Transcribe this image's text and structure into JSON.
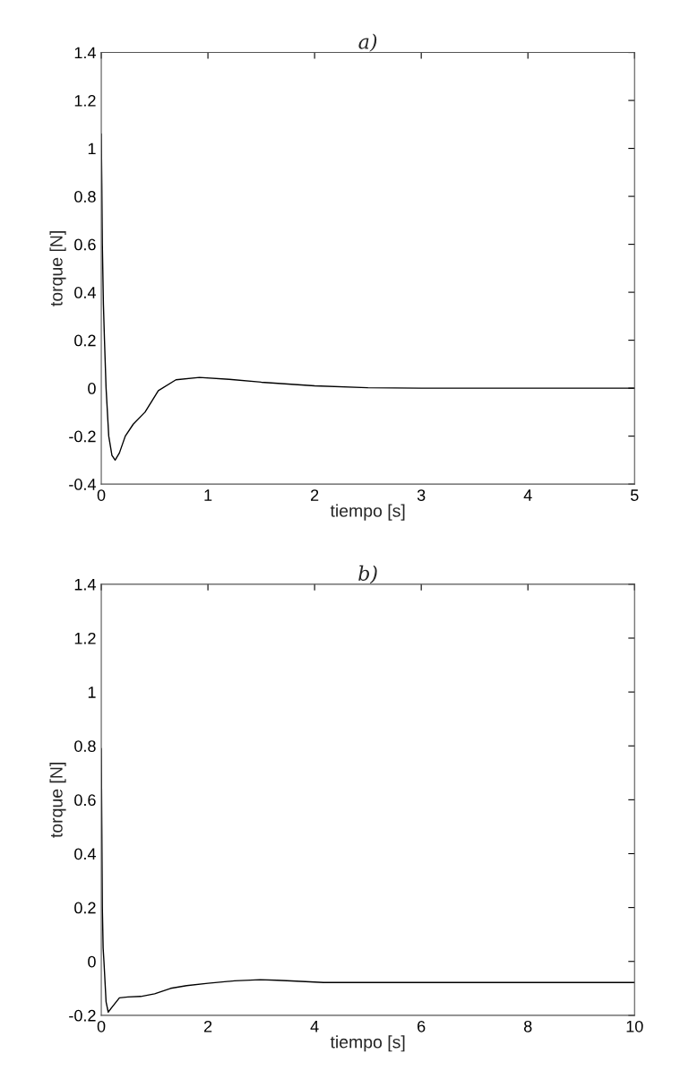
{
  "chart_data": [
    {
      "type": "line",
      "title": "a)",
      "xlabel": "tiempo [s]",
      "ylabel": "torque [N]",
      "xlim": [
        0,
        5
      ],
      "ylim": [
        -0.4,
        1.4
      ],
      "xticks": [
        0,
        1,
        2,
        3,
        4,
        5
      ],
      "yticks": [
        -0.4,
        -0.2,
        0,
        0.2,
        0.4,
        0.6,
        0.8,
        1,
        1.2,
        1.4
      ],
      "grid": false,
      "legend": false,
      "series": [
        {
          "color": "#000000",
          "x": [
            0,
            0.005,
            0.01,
            0.02,
            0.03,
            0.045,
            0.07,
            0.1,
            0.13,
            0.17,
            0.225,
            0.3,
            0.41,
            0.535,
            0.7,
            0.92,
            1.2,
            1.5,
            2,
            2.5,
            3,
            4,
            5
          ],
          "values": [
            1.06,
            0.85,
            0.6,
            0.35,
            0.2,
            0,
            -0.2,
            -0.28,
            -0.3,
            -0.27,
            -0.2,
            -0.15,
            -0.1,
            -0.01,
            0.035,
            0.045,
            0.037,
            0.025,
            0.01,
            0.002,
            0,
            0,
            0
          ]
        }
      ]
    },
    {
      "type": "line",
      "title": "b)",
      "xlabel": "tiempo [s]",
      "ylabel": "torque [N]",
      "xlim": [
        0,
        10
      ],
      "ylim": [
        -0.2,
        1.4
      ],
      "xticks": [
        0,
        2,
        4,
        6,
        8,
        10
      ],
      "yticks": [
        -0.2,
        0,
        0.2,
        0.4,
        0.6,
        0.8,
        1,
        1.2,
        1.4
      ],
      "grid": false,
      "legend": false,
      "series": [
        {
          "color": "#000000",
          "x": [
            0,
            0.01,
            0.02,
            0.035,
            0.05,
            0.09,
            0.13,
            0.2,
            0.34,
            0.5,
            0.74,
            1,
            1.3,
            1.6,
            2,
            2.5,
            2.98,
            3.3,
            3.66,
            4.17,
            5,
            7,
            10
          ],
          "values": [
            0.79,
            0.5,
            0.2,
            0.05,
            0,
            -0.15,
            -0.188,
            -0.17,
            -0.135,
            -0.132,
            -0.13,
            -0.12,
            -0.1,
            -0.09,
            -0.081,
            -0.072,
            -0.068,
            -0.07,
            -0.073,
            -0.078,
            -0.078,
            -0.078,
            -0.078
          ]
        }
      ]
    }
  ]
}
